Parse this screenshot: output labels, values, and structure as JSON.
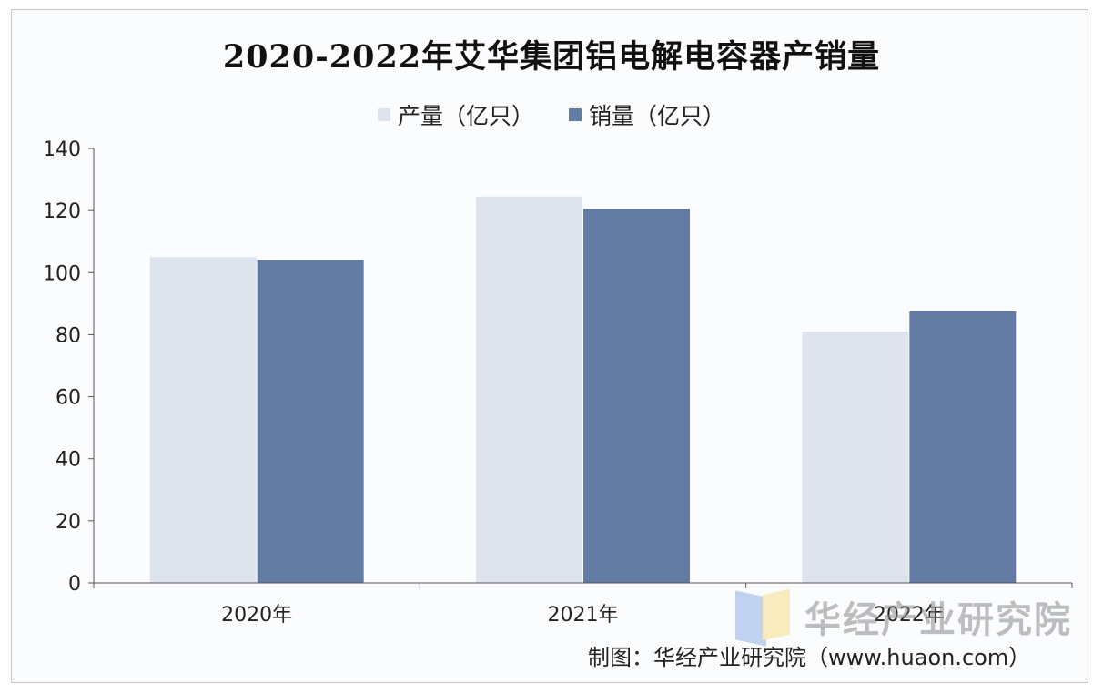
{
  "chart_data": {
    "type": "bar",
    "title": "2020-2022年艾华集团铝电解电容器产销量",
    "categories": [
      "2020年",
      "2021年",
      "2022年"
    ],
    "series": [
      {
        "name": "产量（亿只）",
        "color": "#dde4ee",
        "values": [
          105,
          124.5,
          81
        ]
      },
      {
        "name": "销量（亿只）",
        "color": "#627ba3",
        "values": [
          104,
          120.5,
          87.5
        ]
      }
    ],
    "y_ticks": [
      "0",
      "20",
      "40",
      "60",
      "80",
      "100",
      "120",
      "140"
    ],
    "ylim": [
      0,
      140
    ],
    "xlabel": "",
    "ylabel": "",
    "grid": false,
    "legend_position": "top-center"
  },
  "watermark": {
    "text": "华经产业研究院"
  },
  "source": {
    "text": "制图：华经产业研究院（www.huaon.com）"
  }
}
